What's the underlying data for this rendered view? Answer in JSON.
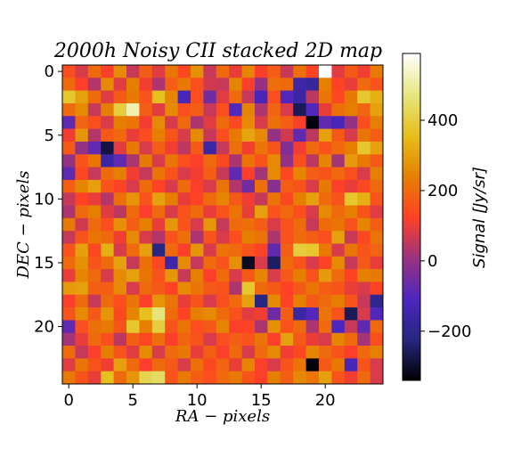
{
  "chart_data": {
    "type": "heatmap",
    "title": "2000h Noisy CII stacked 2D map",
    "xlabel": "RA − pixels",
    "ylabel": "DEC − pixels",
    "colorbar_label": "Signal [Jy/sr]",
    "colormap": "CMRmap-like (black → blue → purple → red → orange → yellow → white)",
    "grid": false,
    "x_range": [
      -0.5,
      24.5
    ],
    "y_range": [
      -0.5,
      24.5
    ],
    "y_inverted": true,
    "x_ticks": [
      0,
      5,
      10,
      15,
      20
    ],
    "y_ticks": [
      0,
      5,
      10,
      15,
      20
    ],
    "color_range": [
      -340,
      590
    ],
    "colorbar_ticks": [
      -200,
      0,
      200,
      400
    ],
    "values": [
      [
        150,
        80,
        200,
        120,
        260,
        60,
        180,
        90,
        220,
        140,
        270,
        60,
        200,
        100,
        250,
        120,
        180,
        60,
        210,
        130,
        590,
        90,
        170,
        110,
        230
      ],
      [
        200,
        120,
        40,
        260,
        90,
        240,
        110,
        30,
        180,
        230,
        150,
        70,
        60,
        250,
        120,
        0,
        210,
        200,
        -150,
        -170,
        240,
        130,
        100,
        200,
        160
      ],
      [
        380,
        300,
        200,
        90,
        170,
        230,
        160,
        360,
        250,
        -120,
        150,
        -50,
        90,
        200,
        60,
        -120,
        150,
        -100,
        -160,
        50,
        220,
        140,
        230,
        380,
        330
      ],
      [
        200,
        260,
        60,
        240,
        400,
        520,
        180,
        90,
        260,
        150,
        180,
        60,
        150,
        -100,
        250,
        30,
        190,
        80,
        -260,
        -100,
        100,
        210,
        240,
        190,
        300
      ],
      [
        -80,
        190,
        150,
        80,
        240,
        220,
        110,
        260,
        80,
        200,
        30,
        90,
        200,
        140,
        260,
        80,
        210,
        180,
        120,
        -330,
        -80,
        -120,
        0,
        150,
        240
      ],
      [
        110,
        280,
        40,
        170,
        200,
        100,
        150,
        240,
        160,
        80,
        260,
        60,
        150,
        230,
        310,
        260,
        0,
        70,
        -80,
        50,
        300,
        170,
        80,
        220,
        180
      ],
      [
        170,
        0,
        -80,
        -280,
        90,
        230,
        80,
        180,
        110,
        50,
        170,
        -160,
        60,
        210,
        110,
        220,
        160,
        -30,
        110,
        200,
        160,
        200,
        240,
        380,
        300
      ],
      [
        0,
        160,
        220,
        -160,
        -80,
        30,
        230,
        80,
        220,
        150,
        120,
        200,
        140,
        30,
        220,
        160,
        260,
        0,
        150,
        50,
        250,
        20,
        290,
        230,
        170
      ],
      [
        -80,
        140,
        60,
        200,
        240,
        110,
        60,
        220,
        160,
        80,
        110,
        180,
        60,
        -80,
        120,
        20,
        260,
        140,
        250,
        180,
        160,
        200,
        150,
        80,
        240
      ],
      [
        180,
        250,
        300,
        160,
        130,
        80,
        200,
        130,
        80,
        200,
        120,
        80,
        220,
        40,
        -50,
        210,
        -20,
        180,
        160,
        80,
        230,
        120,
        100,
        140,
        200
      ],
      [
        60,
        130,
        100,
        40,
        210,
        280,
        160,
        300,
        240,
        100,
        130,
        200,
        250,
        170,
        110,
        60,
        220,
        140,
        240,
        300,
        200,
        160,
        380,
        330,
        160
      ],
      [
        30,
        200,
        240,
        90,
        50,
        200,
        120,
        200,
        80,
        160,
        200,
        100,
        160,
        220,
        100,
        300,
        160,
        200,
        150,
        80,
        260,
        200,
        240,
        160,
        90
      ],
      [
        230,
        70,
        200,
        150,
        270,
        180,
        240,
        100,
        280,
        160,
        80,
        280,
        60,
        200,
        210,
        180,
        80,
        160,
        200,
        60,
        200,
        220,
        160,
        250,
        180
      ],
      [
        60,
        160,
        220,
        200,
        110,
        260,
        80,
        40,
        160,
        210,
        30,
        160,
        80,
        150,
        240,
        220,
        30,
        160,
        200,
        180,
        150,
        300,
        60,
        140,
        220
      ],
      [
        160,
        300,
        140,
        330,
        80,
        200,
        300,
        -220,
        200,
        120,
        280,
        80,
        220,
        200,
        160,
        130,
        -80,
        180,
        400,
        380,
        230,
        80,
        220,
        160,
        190
      ],
      [
        200,
        270,
        160,
        200,
        300,
        60,
        210,
        140,
        -150,
        260,
        60,
        200,
        160,
        270,
        -310,
        80,
        -250,
        200,
        160,
        80,
        130,
        260,
        60,
        170,
        100
      ],
      [
        100,
        250,
        200,
        80,
        260,
        300,
        220,
        160,
        280,
        60,
        240,
        120,
        200,
        80,
        170,
        250,
        80,
        170,
        240,
        160,
        290,
        200,
        130,
        240,
        230
      ],
      [
        290,
        300,
        180,
        180,
        260,
        80,
        200,
        170,
        130,
        260,
        220,
        170,
        160,
        30,
        380,
        200,
        170,
        130,
        170,
        220,
        180,
        160,
        100,
        80,
        130
      ],
      [
        120,
        200,
        60,
        200,
        150,
        220,
        120,
        280,
        220,
        100,
        160,
        80,
        150,
        200,
        300,
        -220,
        260,
        130,
        240,
        170,
        200,
        240,
        160,
        60,
        -200
      ],
      [
        160,
        260,
        170,
        280,
        140,
        250,
        360,
        470,
        200,
        130,
        240,
        260,
        200,
        160,
        90,
        110,
        -60,
        180,
        -160,
        -100,
        220,
        160,
        -260,
        80,
        -100
      ],
      [
        -80,
        150,
        210,
        230,
        160,
        380,
        240,
        400,
        160,
        220,
        150,
        170,
        250,
        120,
        130,
        30,
        270,
        160,
        200,
        30,
        200,
        -110,
        60,
        -80,
        200
      ],
      [
        20,
        100,
        200,
        150,
        50,
        180,
        140,
        210,
        120,
        190,
        160,
        80,
        150,
        180,
        160,
        220,
        120,
        300,
        170,
        100,
        80,
        250,
        200,
        20,
        150
      ],
      [
        200,
        60,
        120,
        240,
        160,
        90,
        260,
        80,
        200,
        230,
        100,
        180,
        120,
        200,
        80,
        200,
        260,
        110,
        140,
        250,
        200,
        160,
        120,
        200,
        240
      ],
      [
        90,
        220,
        160,
        110,
        300,
        200,
        120,
        200,
        170,
        80,
        210,
        140,
        190,
        100,
        250,
        120,
        80,
        160,
        220,
        -330,
        170,
        230,
        -120,
        160,
        80
      ],
      [
        230,
        160,
        100,
        360,
        200,
        280,
        420,
        440,
        160,
        230,
        180,
        150,
        200,
        230,
        160,
        120,
        240,
        180,
        260,
        220,
        300,
        160,
        110,
        200,
        80
      ]
    ]
  }
}
